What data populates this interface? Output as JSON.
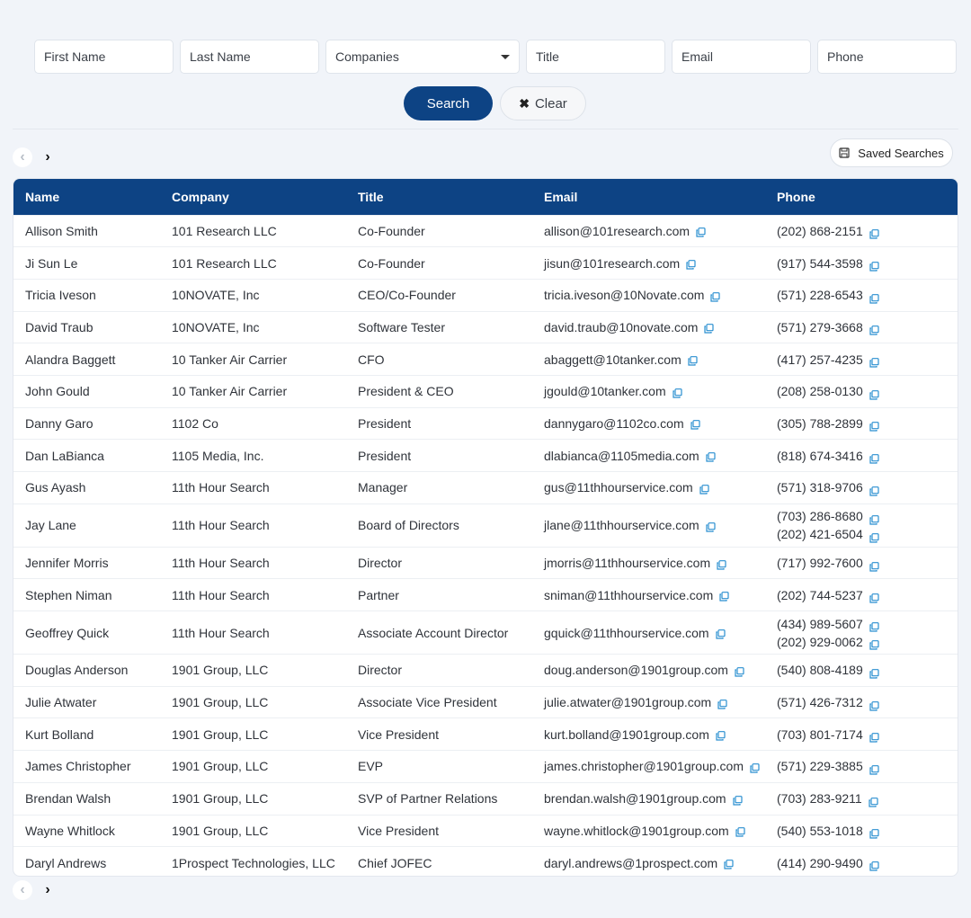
{
  "filters": {
    "first_name_placeholder": "First Name",
    "last_name_placeholder": "Last Name",
    "companies_label": "Companies",
    "title_placeholder": "Title",
    "email_placeholder": "Email",
    "phone_placeholder": "Phone"
  },
  "actions": {
    "search_label": "Search",
    "clear_label": "Clear",
    "clear_icon": "close-icon",
    "saved_searches_label": "Saved Searches",
    "saved_icon": "save-icon"
  },
  "pagination": {
    "prev_icon": "chevron-left-icon",
    "next_icon": "chevron-right-icon"
  },
  "colors": {
    "accent": "#0d4384",
    "copy_icon": "#2a8fd0",
    "background": "#f1f4f9"
  },
  "table": {
    "columns": [
      "Name",
      "Company",
      "Title",
      "Email",
      "Phone"
    ],
    "rows": [
      {
        "name": "Allison Smith",
        "company": "101 Research LLC",
        "title": "Co-Founder",
        "email": "allison@101research.com",
        "phones": [
          "(202) 868-2151"
        ]
      },
      {
        "name": "Ji Sun Le",
        "company": "101 Research LLC",
        "title": "Co-Founder",
        "email": "jisun@101research.com",
        "phones": [
          "(917) 544-3598"
        ]
      },
      {
        "name": "Tricia Iveson",
        "company": "10NOVATE, Inc",
        "title": "CEO/Co-Founder",
        "email": "tricia.iveson@10Novate.com",
        "phones": [
          "(571) 228-6543"
        ]
      },
      {
        "name": "David Traub",
        "company": "10NOVATE, Inc",
        "title": "Software Tester",
        "email": "david.traub@10novate.com",
        "phones": [
          "(571) 279-3668"
        ]
      },
      {
        "name": "Alandra Baggett",
        "company": "10 Tanker Air Carrier",
        "title": "CFO",
        "email": "abaggett@10tanker.com",
        "phones": [
          "(417) 257-4235"
        ]
      },
      {
        "name": "John Gould",
        "company": "10 Tanker Air Carrier",
        "title": "President & CEO",
        "email": "jgould@10tanker.com",
        "phones": [
          "(208) 258-0130"
        ]
      },
      {
        "name": "Danny Garo",
        "company": "1102 Co",
        "title": "President",
        "email": "dannygaro@1102co.com",
        "phones": [
          "(305) 788-2899"
        ]
      },
      {
        "name": "Dan LaBianca",
        "company": "1105 Media, Inc.",
        "title": "President",
        "email": "dlabianca@1105media.com",
        "phones": [
          "(818) 674-3416"
        ]
      },
      {
        "name": "Gus Ayash",
        "company": "11th Hour Search",
        "title": "Manager",
        "email": "gus@11thhourservice.com",
        "phones": [
          "(571) 318-9706"
        ]
      },
      {
        "name": "Jay Lane",
        "company": "11th Hour Search",
        "title": "Board of Directors",
        "email": "jlane@11thhourservice.com",
        "phones": [
          "(703) 286-8680",
          "(202) 421-6504"
        ]
      },
      {
        "name": "Jennifer Morris",
        "company": "11th Hour Search",
        "title": "Director",
        "email": "jmorris@11thhourservice.com",
        "phones": [
          "(717) 992-7600"
        ]
      },
      {
        "name": "Stephen Niman",
        "company": "11th Hour Search",
        "title": "Partner",
        "email": "sniman@11thhourservice.com",
        "phones": [
          "(202) 744-5237"
        ]
      },
      {
        "name": "Geoffrey Quick",
        "company": "11th Hour Search",
        "title": "Associate Account Director",
        "email": "gquick@11thhourservice.com",
        "phones": [
          "(434) 989-5607",
          "(202) 929-0062"
        ]
      },
      {
        "name": "Douglas Anderson",
        "company": "1901 Group, LLC",
        "title": "Director",
        "email": "doug.anderson@1901group.com",
        "phones": [
          "(540) 808-4189"
        ]
      },
      {
        "name": "Julie Atwater",
        "company": "1901 Group, LLC",
        "title": "Associate Vice President",
        "email": "julie.atwater@1901group.com",
        "phones": [
          "(571) 426-7312"
        ]
      },
      {
        "name": "Kurt Bolland",
        "company": "1901 Group, LLC",
        "title": "Vice President",
        "email": "kurt.bolland@1901group.com",
        "phones": [
          "(703) 801-7174"
        ]
      },
      {
        "name": "James Christopher",
        "company": "1901 Group, LLC",
        "title": "EVP",
        "email": "james.christopher@1901group.com",
        "phones": [
          "(571) 229-3885"
        ]
      },
      {
        "name": "Brendan Walsh",
        "company": "1901 Group, LLC",
        "title": "SVP of Partner Relations",
        "email": "brendan.walsh@1901group.com",
        "phones": [
          "(703) 283-9211"
        ]
      },
      {
        "name": "Wayne Whitlock",
        "company": "1901 Group, LLC",
        "title": "Vice President",
        "email": "wayne.whitlock@1901group.com",
        "phones": [
          "(540) 553-1018"
        ]
      },
      {
        "name": "Daryl Andrews",
        "company": "1Prospect Technologies, LLC",
        "title": "Chief JOFEC",
        "email": "daryl.andrews@1prospect.com",
        "phones": [
          "(414) 290-9490"
        ]
      }
    ]
  }
}
